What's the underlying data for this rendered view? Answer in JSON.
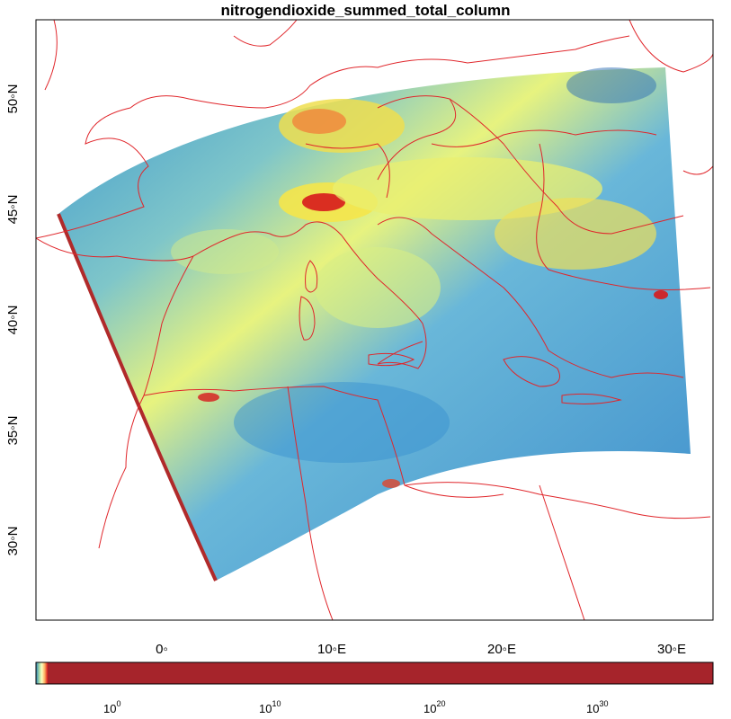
{
  "title": "nitrogendioxide_summed_total_column",
  "map": {
    "colors": {
      "border": "#e0262b",
      "frame": "#000000",
      "low": "#2b83ba",
      "mid": "#abdda4",
      "high": "#fdae61",
      "peak": "#d7191c",
      "bar_fill": "#a6242b"
    },
    "x_ticks": [
      "0◦",
      "10◦E",
      "20◦E",
      "30◦E"
    ],
    "y_ticks": [
      "30◦N",
      "35◦N",
      "40◦N",
      "45◦N",
      "50◦N"
    ],
    "colorbar": {
      "base": "10",
      "exponents": [
        "0",
        "10",
        "20",
        "30"
      ],
      "gradient": [
        "#2b83ba",
        "#abdda4",
        "#ffffbf",
        "#fdae61",
        "#d7191c"
      ]
    }
  }
}
